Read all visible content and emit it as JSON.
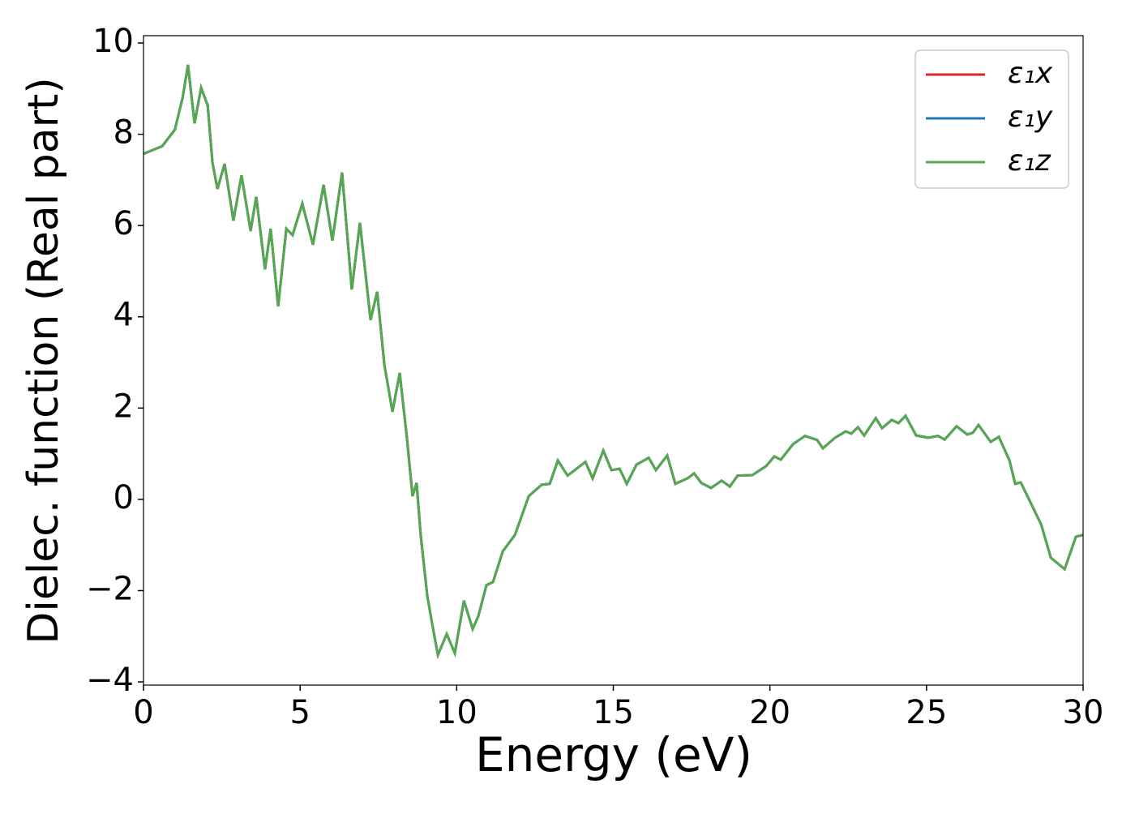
{
  "chart_data": {
    "type": "line",
    "xlabel": "Energy (eV)",
    "ylabel": "Dielec. function (Real part)",
    "xlim": [
      0,
      30
    ],
    "ylim": [
      -4.07,
      10.16
    ],
    "xticks": [
      0,
      5,
      10,
      15,
      20,
      25,
      30
    ],
    "yticks": [
      {
        "value": -4,
        "label": "−4"
      },
      {
        "value": -2,
        "label": "−2"
      },
      0,
      2,
      4,
      6,
      8,
      10
    ],
    "legend": "upper right",
    "x": [
      0,
      0.6,
      1.0,
      1.25,
      1.42,
      1.63,
      1.84,
      2.05,
      2.2,
      2.36,
      2.59,
      2.87,
      3.13,
      3.42,
      3.6,
      3.88,
      4.06,
      4.3,
      4.56,
      4.76,
      5.07,
      5.41,
      5.75,
      6.03,
      6.34,
      6.65,
      6.91,
      7.25,
      7.46,
      7.69,
      7.95,
      8.18,
      8.41,
      8.59,
      8.72,
      8.85,
      9.06,
      9.22,
      9.4,
      9.68,
      9.94,
      10.23,
      10.51,
      10.69,
      10.95,
      11.16,
      11.47,
      11.86,
      12.3,
      12.71,
      12.97,
      13.23,
      13.54,
      14.11,
      14.34,
      14.68,
      14.94,
      15.2,
      15.43,
      15.74,
      16.13,
      16.36,
      16.72,
      16.98,
      17.37,
      17.58,
      17.81,
      18.12,
      18.46,
      18.72,
      18.97,
      19.44,
      19.88,
      20.14,
      20.35,
      20.74,
      21.12,
      21.51,
      21.69,
      22.08,
      22.42,
      22.6,
      22.81,
      23.01,
      23.38,
      23.58,
      23.89,
      24.1,
      24.33,
      24.67,
      25.06,
      25.37,
      25.58,
      25.96,
      26.3,
      26.48,
      26.66,
      27.05,
      27.31,
      27.65,
      27.83,
      28.01,
      28.3,
      28.66,
      28.97,
      29.41,
      29.77,
      30
    ],
    "series": [
      {
        "name": "ε₁x",
        "color": "#d62728",
        "values": [
          7.57,
          7.74,
          8.1,
          8.8,
          9.52,
          8.24,
          9.02,
          8.63,
          7.39,
          6.8,
          7.35,
          6.11,
          7.1,
          5.88,
          6.63,
          5.04,
          5.93,
          4.23,
          5.93,
          5.79,
          6.48,
          5.58,
          6.89,
          5.67,
          7.16,
          4.6,
          6.06,
          3.93,
          4.55,
          2.95,
          1.92,
          2.77,
          1.35,
          0.07,
          0.36,
          -0.78,
          -2.11,
          -2.74,
          -3.41,
          -2.95,
          -3.37,
          -2.22,
          -2.84,
          -2.56,
          -1.88,
          -1.81,
          -1.14,
          -0.78,
          0.07,
          0.32,
          0.34,
          0.85,
          0.52,
          0.82,
          0.46,
          1.07,
          0.64,
          0.67,
          0.34,
          0.76,
          0.91,
          0.64,
          0.96,
          0.34,
          0.46,
          0.57,
          0.36,
          0.25,
          0.41,
          0.28,
          0.52,
          0.53,
          0.73,
          0.94,
          0.87,
          1.21,
          1.39,
          1.3,
          1.12,
          1.35,
          1.49,
          1.44,
          1.58,
          1.4,
          1.78,
          1.56,
          1.74,
          1.67,
          1.83,
          1.4,
          1.35,
          1.39,
          1.31,
          1.6,
          1.42,
          1.46,
          1.63,
          1.26,
          1.37,
          0.85,
          0.34,
          0.37,
          -0.04,
          -0.55,
          -1.28,
          -1.53,
          -0.82,
          -0.78
        ]
      },
      {
        "name": "ε₁y",
        "color": "#1f77b4",
        "values": [
          7.57,
          7.74,
          8.1,
          8.8,
          9.52,
          8.24,
          9.02,
          8.63,
          7.39,
          6.8,
          7.35,
          6.11,
          7.1,
          5.88,
          6.63,
          5.04,
          5.93,
          4.23,
          5.93,
          5.79,
          6.48,
          5.58,
          6.89,
          5.67,
          7.16,
          4.6,
          6.06,
          3.93,
          4.55,
          2.95,
          1.92,
          2.77,
          1.35,
          0.07,
          0.36,
          -0.78,
          -2.11,
          -2.74,
          -3.41,
          -2.95,
          -3.37,
          -2.22,
          -2.84,
          -2.56,
          -1.88,
          -1.81,
          -1.14,
          -0.78,
          0.07,
          0.32,
          0.34,
          0.85,
          0.52,
          0.82,
          0.46,
          1.07,
          0.64,
          0.67,
          0.34,
          0.76,
          0.91,
          0.64,
          0.96,
          0.34,
          0.46,
          0.57,
          0.36,
          0.25,
          0.41,
          0.28,
          0.52,
          0.53,
          0.73,
          0.94,
          0.87,
          1.21,
          1.39,
          1.3,
          1.12,
          1.35,
          1.49,
          1.44,
          1.58,
          1.4,
          1.78,
          1.56,
          1.74,
          1.67,
          1.83,
          1.4,
          1.35,
          1.39,
          1.31,
          1.6,
          1.42,
          1.46,
          1.63,
          1.26,
          1.37,
          0.85,
          0.34,
          0.37,
          -0.04,
          -0.55,
          -1.28,
          -1.53,
          -0.82,
          -0.78
        ]
      },
      {
        "name": "ε₁z",
        "color": "#55a84f",
        "values": [
          7.57,
          7.74,
          8.1,
          8.8,
          9.52,
          8.24,
          9.02,
          8.63,
          7.39,
          6.8,
          7.35,
          6.11,
          7.1,
          5.88,
          6.63,
          5.04,
          5.93,
          4.23,
          5.93,
          5.79,
          6.48,
          5.58,
          6.89,
          5.67,
          7.16,
          4.6,
          6.06,
          3.93,
          4.55,
          2.95,
          1.92,
          2.77,
          1.35,
          0.07,
          0.36,
          -0.78,
          -2.11,
          -2.74,
          -3.41,
          -2.95,
          -3.37,
          -2.22,
          -2.84,
          -2.56,
          -1.88,
          -1.81,
          -1.14,
          -0.78,
          0.07,
          0.32,
          0.34,
          0.85,
          0.52,
          0.82,
          0.46,
          1.07,
          0.64,
          0.67,
          0.34,
          0.76,
          0.91,
          0.64,
          0.96,
          0.34,
          0.46,
          0.57,
          0.36,
          0.25,
          0.41,
          0.28,
          0.52,
          0.53,
          0.73,
          0.94,
          0.87,
          1.21,
          1.39,
          1.3,
          1.12,
          1.35,
          1.49,
          1.44,
          1.58,
          1.4,
          1.78,
          1.56,
          1.74,
          1.67,
          1.83,
          1.4,
          1.35,
          1.39,
          1.31,
          1.6,
          1.42,
          1.46,
          1.63,
          1.26,
          1.37,
          0.85,
          0.34,
          0.37,
          -0.04,
          -0.55,
          -1.28,
          -1.53,
          -0.82,
          -0.78
        ]
      }
    ]
  }
}
